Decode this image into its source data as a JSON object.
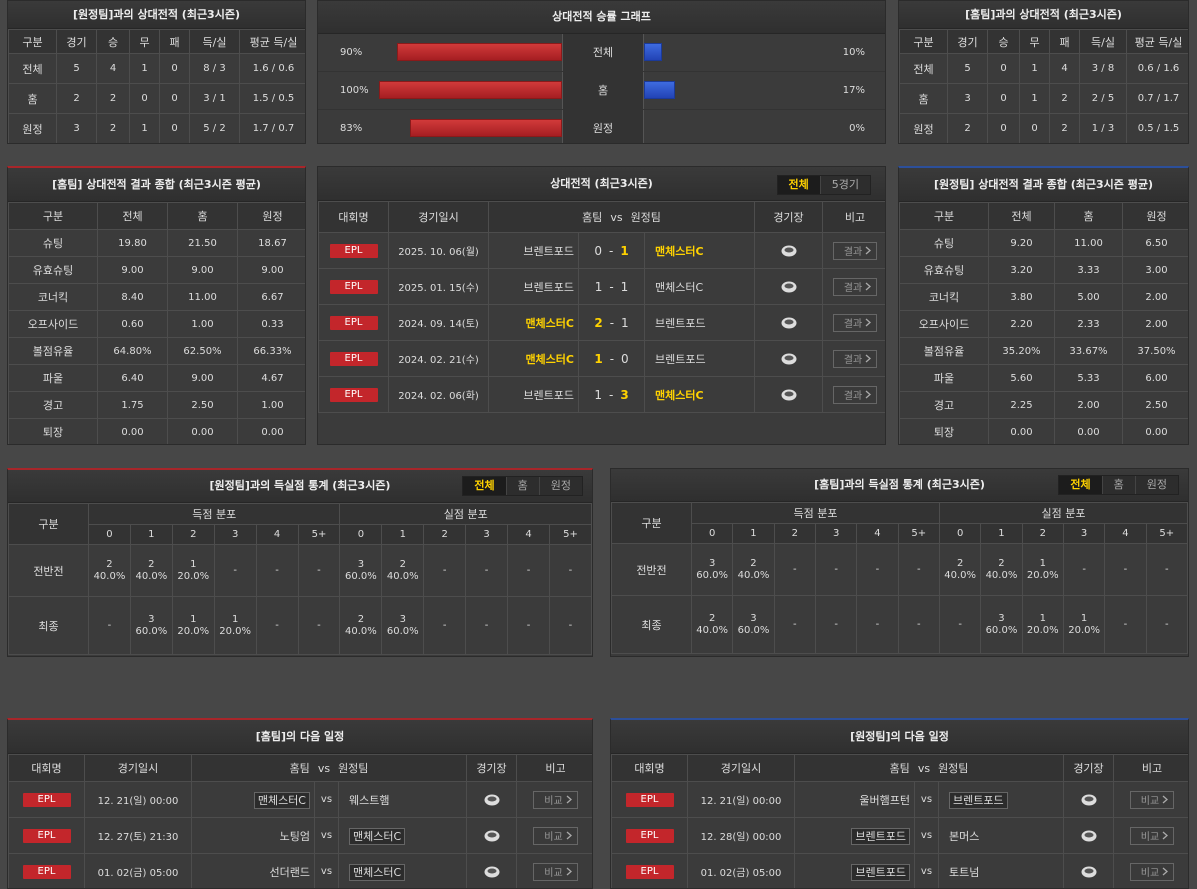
{
  "record_vs_away": {
    "title": "[원정팀]과의 상대전적 (최근3시즌)",
    "columns": [
      "구분",
      "경기",
      "승",
      "무",
      "패",
      "득/실",
      "평균 득/실"
    ],
    "rows": [
      [
        "전체",
        "5",
        "4",
        "1",
        "0",
        "8 / 3",
        "1.6 / 0.6"
      ],
      [
        "홈",
        "2",
        "2",
        "0",
        "0",
        "3 / 1",
        "1.5 / 0.5"
      ],
      [
        "원정",
        "3",
        "2",
        "1",
        "0",
        "5 / 2",
        "1.7 / 0.7"
      ]
    ]
  },
  "winrate": {
    "title": "상대전적 승률 그래프",
    "rows": [
      {
        "label": "전체",
        "home": 90,
        "home_label": "90%",
        "away": 10,
        "away_label": "10%"
      },
      {
        "label": "홈",
        "home": 100,
        "home_label": "100%",
        "away": 17,
        "away_label": "17%"
      },
      {
        "label": "원정",
        "home": 83,
        "home_label": "83%",
        "away": 0,
        "away_label": "0%"
      }
    ]
  },
  "record_vs_home": {
    "title": "[홈팀]과의 상대전적 (최근3시즌)",
    "columns": [
      "구분",
      "경기",
      "승",
      "무",
      "패",
      "득/실",
      "평균 득/실"
    ],
    "rows": [
      [
        "전체",
        "5",
        "0",
        "1",
        "4",
        "3 / 8",
        "0.6 / 1.6"
      ],
      [
        "홈",
        "3",
        "0",
        "1",
        "2",
        "2 / 5",
        "0.7 / 1.7"
      ],
      [
        "원정",
        "2",
        "0",
        "0",
        "2",
        "1 / 3",
        "0.5 / 1.5"
      ]
    ]
  },
  "home_summary": {
    "title": "[홈팀] 상대전적 결과 종합 (최근3시즌 평균)",
    "columns": [
      "구분",
      "전체",
      "홈",
      "원정"
    ],
    "rows": [
      [
        "슈팅",
        "19.80",
        "21.50",
        "18.67"
      ],
      [
        "유효슈팅",
        "9.00",
        "9.00",
        "9.00"
      ],
      [
        "코너킥",
        "8.40",
        "11.00",
        "6.67"
      ],
      [
        "오프사이드",
        "0.60",
        "1.00",
        "0.33"
      ],
      [
        "볼점유율",
        "64.80%",
        "62.50%",
        "66.33%"
      ],
      [
        "파울",
        "6.40",
        "9.00",
        "4.67"
      ],
      [
        "경고",
        "1.75",
        "2.50",
        "1.00"
      ],
      [
        "퇴장",
        "0.00",
        "0.00",
        "0.00"
      ]
    ]
  },
  "h2h": {
    "title": "상대전적 (최근3시즌)",
    "tabs": [
      "전체",
      "5경기"
    ],
    "active_tab": 0,
    "columns": [
      "대회명",
      "경기일시",
      "홈팀",
      "vs",
      "원정팀",
      "경기장",
      "비고"
    ],
    "score_sep": "-",
    "button": "결과",
    "rows": [
      {
        "league": "EPL",
        "date": "2025. 10. 06(월)",
        "home": "브렌트포드",
        "home_score": 0,
        "away_score": 1,
        "away": "맨체스터C"
      },
      {
        "league": "EPL",
        "date": "2025. 01. 15(수)",
        "home": "브렌트포드",
        "home_score": 1,
        "away_score": 1,
        "away": "맨체스터C"
      },
      {
        "league": "EPL",
        "date": "2024. 09. 14(토)",
        "home": "맨체스터C",
        "home_score": 2,
        "away_score": 1,
        "away": "브렌트포드"
      },
      {
        "league": "EPL",
        "date": "2024. 02. 21(수)",
        "home": "맨체스터C",
        "home_score": 1,
        "away_score": 0,
        "away": "브렌트포드"
      },
      {
        "league": "EPL",
        "date": "2024. 02. 06(화)",
        "home": "브렌트포드",
        "home_score": 1,
        "away_score": 3,
        "away": "맨체스터C"
      }
    ]
  },
  "away_summary": {
    "title": "[원정팀] 상대전적 결과 종합 (최근3시즌 평균)",
    "columns": [
      "구분",
      "전체",
      "홈",
      "원정"
    ],
    "rows": [
      [
        "슈팅",
        "9.20",
        "11.00",
        "6.50"
      ],
      [
        "유효슈팅",
        "3.20",
        "3.33",
        "3.00"
      ],
      [
        "코너킥",
        "3.80",
        "5.00",
        "2.00"
      ],
      [
        "오프사이드",
        "2.20",
        "2.33",
        "2.00"
      ],
      [
        "볼점유율",
        "35.20%",
        "33.67%",
        "37.50%"
      ],
      [
        "파울",
        "5.60",
        "5.33",
        "6.00"
      ],
      [
        "경고",
        "2.25",
        "2.00",
        "2.50"
      ],
      [
        "퇴장",
        "0.00",
        "0.00",
        "0.00"
      ]
    ]
  },
  "goals_vs_away": {
    "title": "[원정팀]과의 득실점 통계 (최근3시즌)",
    "tabs": [
      "전체",
      "홈",
      "원정"
    ],
    "active_tab": 0,
    "label": "구분",
    "scored": "득점 분포",
    "conceded": "실점 분포",
    "bins": [
      "0",
      "1",
      "2",
      "3",
      "4",
      "5+"
    ],
    "rows": [
      {
        "label": "전반전",
        "scored": [
          [
            "2",
            "40.0%"
          ],
          [
            "2",
            "40.0%"
          ],
          [
            "1",
            "20.0%"
          ],
          "-",
          "-",
          "-"
        ],
        "conceded": [
          [
            "3",
            "60.0%"
          ],
          [
            "2",
            "40.0%"
          ],
          "-",
          "-",
          "-",
          "-"
        ]
      },
      {
        "label": "최종",
        "scored": [
          "-",
          [
            "3",
            "60.0%"
          ],
          [
            "1",
            "20.0%"
          ],
          [
            "1",
            "20.0%"
          ],
          "-",
          "-"
        ],
        "conceded": [
          [
            "2",
            "40.0%"
          ],
          [
            "3",
            "60.0%"
          ],
          "-",
          "-",
          "-",
          "-"
        ]
      }
    ]
  },
  "goals_vs_home": {
    "title": "[홈팀]과의 득실점 통계 (최근3시즌)",
    "tabs": [
      "전체",
      "홈",
      "원정"
    ],
    "active_tab": 0,
    "label": "구분",
    "scored": "득점 분포",
    "conceded": "실점 분포",
    "bins": [
      "0",
      "1",
      "2",
      "3",
      "4",
      "5+"
    ],
    "rows": [
      {
        "label": "전반전",
        "scored": [
          [
            "3",
            "60.0%"
          ],
          [
            "2",
            "40.0%"
          ],
          "-",
          "-",
          "-",
          "-"
        ],
        "conceded": [
          [
            "2",
            "40.0%"
          ],
          [
            "2",
            "40.0%"
          ],
          [
            "1",
            "20.0%"
          ],
          "-",
          "-",
          "-"
        ]
      },
      {
        "label": "최종",
        "scored": [
          [
            "2",
            "40.0%"
          ],
          [
            "3",
            "60.0%"
          ],
          "-",
          "-",
          "-",
          "-"
        ],
        "conceded": [
          "-",
          [
            "3",
            "60.0%"
          ],
          [
            "1",
            "20.0%"
          ],
          [
            "1",
            "20.0%"
          ],
          "-",
          "-"
        ]
      }
    ]
  },
  "schedule_home": {
    "title": "[홈팀]의 다음 일정",
    "columns": [
      "대회명",
      "경기일시",
      "홈팀",
      "vs",
      "원정팀",
      "경기장",
      "비고"
    ],
    "button": "비교",
    "rows": [
      {
        "league": "EPL",
        "date": "12. 21(일) 00:00",
        "home": "맨체스터C",
        "away": "웨스트햄",
        "highlight": "home"
      },
      {
        "league": "EPL",
        "date": "12. 27(토) 21:30",
        "home": "노팅엄",
        "away": "맨체스터C",
        "highlight": "away"
      },
      {
        "league": "EPL",
        "date": "01. 02(금) 05:00",
        "home": "선더랜드",
        "away": "맨체스터C",
        "highlight": "away"
      }
    ]
  },
  "schedule_away": {
    "title": "[원정팀]의 다음 일정",
    "columns": [
      "대회명",
      "경기일시",
      "홈팀",
      "vs",
      "원정팀",
      "경기장",
      "비고"
    ],
    "button": "비교",
    "rows": [
      {
        "league": "EPL",
        "date": "12. 21(일) 00:00",
        "home": "울버햄프턴",
        "away": "브렌트포드",
        "highlight": "away"
      },
      {
        "league": "EPL",
        "date": "12. 28(일) 00:00",
        "home": "브렌트포드",
        "away": "본머스",
        "highlight": "home"
      },
      {
        "league": "EPL",
        "date": "01. 02(금) 05:00",
        "home": "브렌트포드",
        "away": "토트넘",
        "highlight": "home"
      }
    ]
  }
}
